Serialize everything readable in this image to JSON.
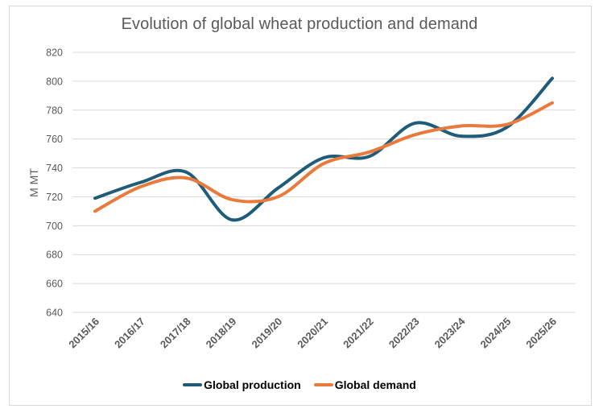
{
  "chart_data": {
    "type": "line",
    "title": "Evolution of global wheat production and demand",
    "xlabel": "",
    "ylabel": "M MT",
    "ylim": [
      640,
      820
    ],
    "yticks": [
      640,
      660,
      680,
      700,
      720,
      740,
      760,
      780,
      800,
      820
    ],
    "grid": true,
    "smooth": true,
    "legend_position": "bottom",
    "categories": [
      "2015/16",
      "2016/17",
      "2017/18",
      "2018/19",
      "2019/20",
      "2020/21",
      "2021/22",
      "2022/23",
      "2023/24",
      "2024/25",
      "2025/26"
    ],
    "series": [
      {
        "name": "Global production",
        "color": "#1F5C7A",
        "values": [
          719,
          730,
          737,
          704,
          726,
          747,
          748,
          771,
          762,
          768,
          802
        ]
      },
      {
        "name": "Global demand",
        "color": "#E87A3C",
        "values": [
          710,
          727,
          733,
          718,
          720,
          743,
          751,
          763,
          769,
          770,
          785
        ]
      }
    ]
  }
}
